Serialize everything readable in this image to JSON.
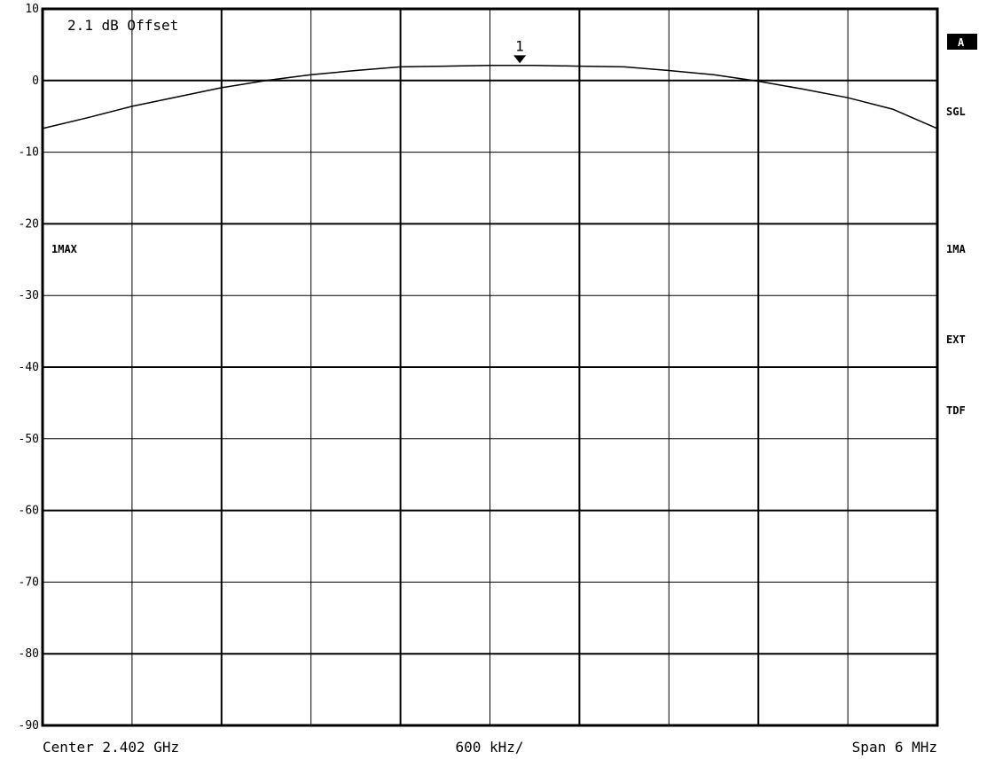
{
  "chart_data": {
    "type": "line",
    "title": "",
    "annotation": "2.1 dB Offset",
    "ylim": [
      -90,
      10
    ],
    "xlim": [
      2.399,
      2.405
    ],
    "x_unit": "GHz",
    "yticks": [
      10,
      0,
      -10,
      -20,
      -30,
      -40,
      -50,
      -60,
      -70,
      -80,
      -90
    ],
    "grid": true,
    "footer": {
      "center": "Center 2.402 GHz",
      "div": "600 kHz/",
      "span": "Span 6 MHz"
    },
    "trace_label_left": "1MAX",
    "side_labels": {
      "a": "A",
      "sgl": "SGL",
      "ma": "1MA",
      "ext": "EXT",
      "tdf": "TDF"
    },
    "trace_color": "#000000",
    "series": [
      {
        "x": [
          2.399,
          2.3993,
          2.3996,
          2.3999,
          2.4002,
          2.4005,
          2.4008,
          2.4011,
          2.4014,
          2.4017,
          2.402,
          2.4023,
          2.4026,
          2.4029,
          2.4032,
          2.4035,
          2.4038,
          2.4041,
          2.4044,
          2.4047,
          2.405
        ],
        "values": [
          -6.7,
          -5.2,
          -3.6,
          -2.3,
          -1.0,
          0.0,
          0.8,
          1.4,
          1.9,
          2.0,
          2.1,
          2.1,
          2.0,
          1.9,
          1.4,
          0.8,
          -0.1,
          -1.2,
          -2.4,
          -4.0,
          -6.7
        ]
      }
    ],
    "marker": {
      "label": "1",
      "x": 2.4022,
      "y": 2.4
    }
  }
}
